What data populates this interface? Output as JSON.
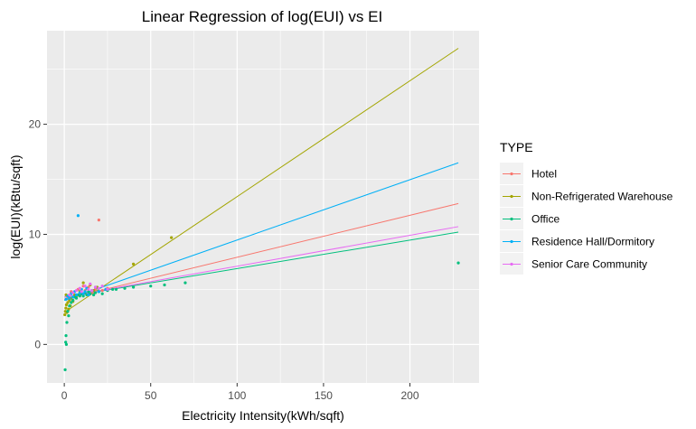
{
  "chart_data": {
    "type": "scatter",
    "title": "Linear Regression of log(EUI) vs EI",
    "xlabel": "Electricity Intensity(kWh/sqft)",
    "ylabel": "log(EUI)(kBtu/sqft)",
    "xlim": [
      -10,
      240
    ],
    "ylim": [
      -3.5,
      28.5
    ],
    "x_ticks": [
      0,
      50,
      100,
      150,
      200
    ],
    "y_ticks": [
      0,
      10,
      20
    ],
    "grid": true,
    "legend": {
      "title": "TYPE",
      "placement": "right"
    },
    "series": [
      {
        "name": "Hotel",
        "color": "#F8766D",
        "line": {
          "x0": 0,
          "y0": 4.1,
          "x1": 228,
          "y1": 12.8
        },
        "points": [
          [
            2,
            4.3
          ],
          [
            4,
            4.8
          ],
          [
            6,
            4.5
          ],
          [
            8,
            5.0
          ],
          [
            10,
            4.6
          ],
          [
            12,
            4.9
          ],
          [
            14,
            5.2
          ],
          [
            16,
            4.7
          ],
          [
            18,
            5.0
          ],
          [
            20,
            11.3
          ],
          [
            22,
            4.9
          ],
          [
            25,
            5.1
          ],
          [
            5,
            4.0
          ],
          [
            11,
            5.3
          ]
        ]
      },
      {
        "name": "Non-Refrigerated Warehouse",
        "color": "#A3A500",
        "line": {
          "x0": 0,
          "y0": 2.9,
          "x1": 228,
          "y1": 26.9
        },
        "points": [
          [
            0.3,
            2.7
          ],
          [
            0.6,
            3.0
          ],
          [
            0.9,
            3.3
          ],
          [
            1.2,
            3.6
          ],
          [
            1.5,
            2.9
          ],
          [
            2,
            3.8
          ],
          [
            2.5,
            3.2
          ],
          [
            3,
            4.0
          ],
          [
            3.5,
            3.5
          ],
          [
            4,
            4.2
          ],
          [
            5,
            3.9
          ],
          [
            6,
            4.5
          ],
          [
            7,
            4.4
          ],
          [
            9,
            4.8
          ],
          [
            11,
            5.6
          ],
          [
            13,
            5.1
          ],
          [
            15,
            5.4
          ],
          [
            17,
            4.9
          ],
          [
            19,
            5.2
          ],
          [
            40,
            7.3
          ],
          [
            62,
            9.7
          ],
          [
            1,
            4.5
          ]
        ]
      },
      {
        "name": "Office",
        "color": "#00BF7D",
        "line": {
          "x0": 0,
          "y0": 4.3,
          "x1": 228,
          "y1": 10.2
        },
        "points": [
          [
            0.5,
            -2.3
          ],
          [
            0.8,
            0.2
          ],
          [
            1,
            0.8
          ],
          [
            1.2,
            0.0
          ],
          [
            1.5,
            2.0
          ],
          [
            2,
            3.0
          ],
          [
            2.5,
            2.6
          ],
          [
            3,
            3.5
          ],
          [
            4,
            3.8
          ],
          [
            5,
            4.0
          ],
          [
            6,
            4.3
          ],
          [
            7,
            4.2
          ],
          [
            8,
            4.5
          ],
          [
            9,
            4.4
          ],
          [
            10,
            4.6
          ],
          [
            11,
            4.4
          ],
          [
            12,
            4.7
          ],
          [
            13,
            4.5
          ],
          [
            14,
            4.8
          ],
          [
            15,
            4.6
          ],
          [
            16,
            4.9
          ],
          [
            17,
            4.5
          ],
          [
            18,
            4.7
          ],
          [
            20,
            4.8
          ],
          [
            22,
            4.6
          ],
          [
            25,
            4.9
          ],
          [
            28,
            5.0
          ],
          [
            30,
            5.0
          ],
          [
            35,
            5.1
          ],
          [
            40,
            5.2
          ],
          [
            50,
            5.3
          ],
          [
            58,
            5.4
          ],
          [
            70,
            5.6
          ],
          [
            228,
            7.4
          ]
        ]
      },
      {
        "name": "Residence Hall/Dormitory",
        "color": "#00B0F6",
        "line": {
          "x0": 0,
          "y0": 4.0,
          "x1": 228,
          "y1": 16.5
        },
        "points": [
          [
            1,
            4.1
          ],
          [
            2,
            4.4
          ],
          [
            3,
            4.2
          ],
          [
            4,
            4.6
          ],
          [
            5,
            4.3
          ],
          [
            6,
            4.8
          ],
          [
            7,
            4.5
          ],
          [
            8,
            11.7
          ],
          [
            9,
            4.7
          ],
          [
            10,
            5.0
          ],
          [
            11,
            4.6
          ],
          [
            12,
            4.8
          ],
          [
            13,
            5.1
          ],
          [
            14,
            4.5
          ],
          [
            16,
            4.9
          ],
          [
            18,
            5.2
          ],
          [
            20,
            4.8
          ],
          [
            24,
            5.0
          ]
        ]
      },
      {
        "name": "Senior Care Community",
        "color": "#E76BF3",
        "line": {
          "x0": 0,
          "y0": 4.3,
          "x1": 228,
          "y1": 10.7
        },
        "points": [
          [
            3,
            4.5
          ],
          [
            5,
            4.7
          ],
          [
            7,
            4.9
          ],
          [
            9,
            5.1
          ],
          [
            10,
            4.8
          ],
          [
            12,
            5.3
          ],
          [
            14,
            5.0
          ],
          [
            15,
            5.5
          ],
          [
            16,
            4.9
          ],
          [
            18,
            5.2
          ],
          [
            20,
            5.1
          ],
          [
            22,
            5.3
          ],
          [
            25,
            5.0
          ]
        ]
      }
    ]
  }
}
